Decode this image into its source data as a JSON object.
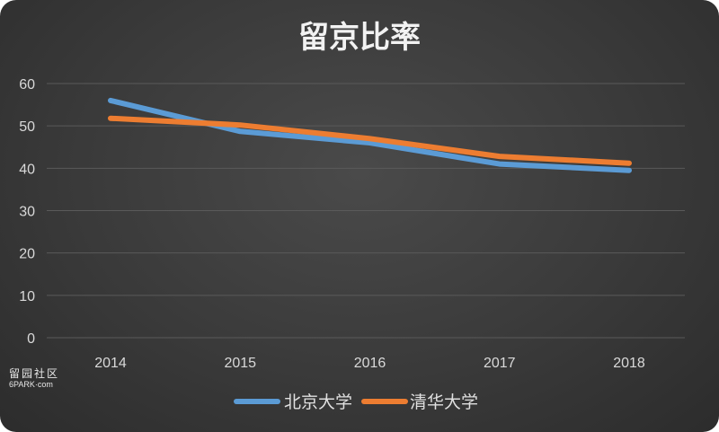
{
  "watermark": {
    "line1": "留园社区",
    "line2": "6PARK·com"
  },
  "chart_data": {
    "type": "line",
    "title": "留京比率",
    "x": [
      "2014",
      "2015",
      "2016",
      "2017",
      "2018"
    ],
    "yticks": [
      "0",
      "10",
      "20",
      "30",
      "40",
      "50",
      "60"
    ],
    "ylim": [
      0,
      60
    ],
    "grid": true,
    "legend_position": "bottom-center",
    "series": [
      {
        "name": "北京大学",
        "values": [
          56,
          48.7,
          46,
          41,
          39.5
        ],
        "color": "#5b9bd5"
      },
      {
        "name": "清华大学",
        "values": [
          51.8,
          50.2,
          47,
          42.8,
          41.2
        ],
        "color": "#ed7d31"
      }
    ]
  }
}
